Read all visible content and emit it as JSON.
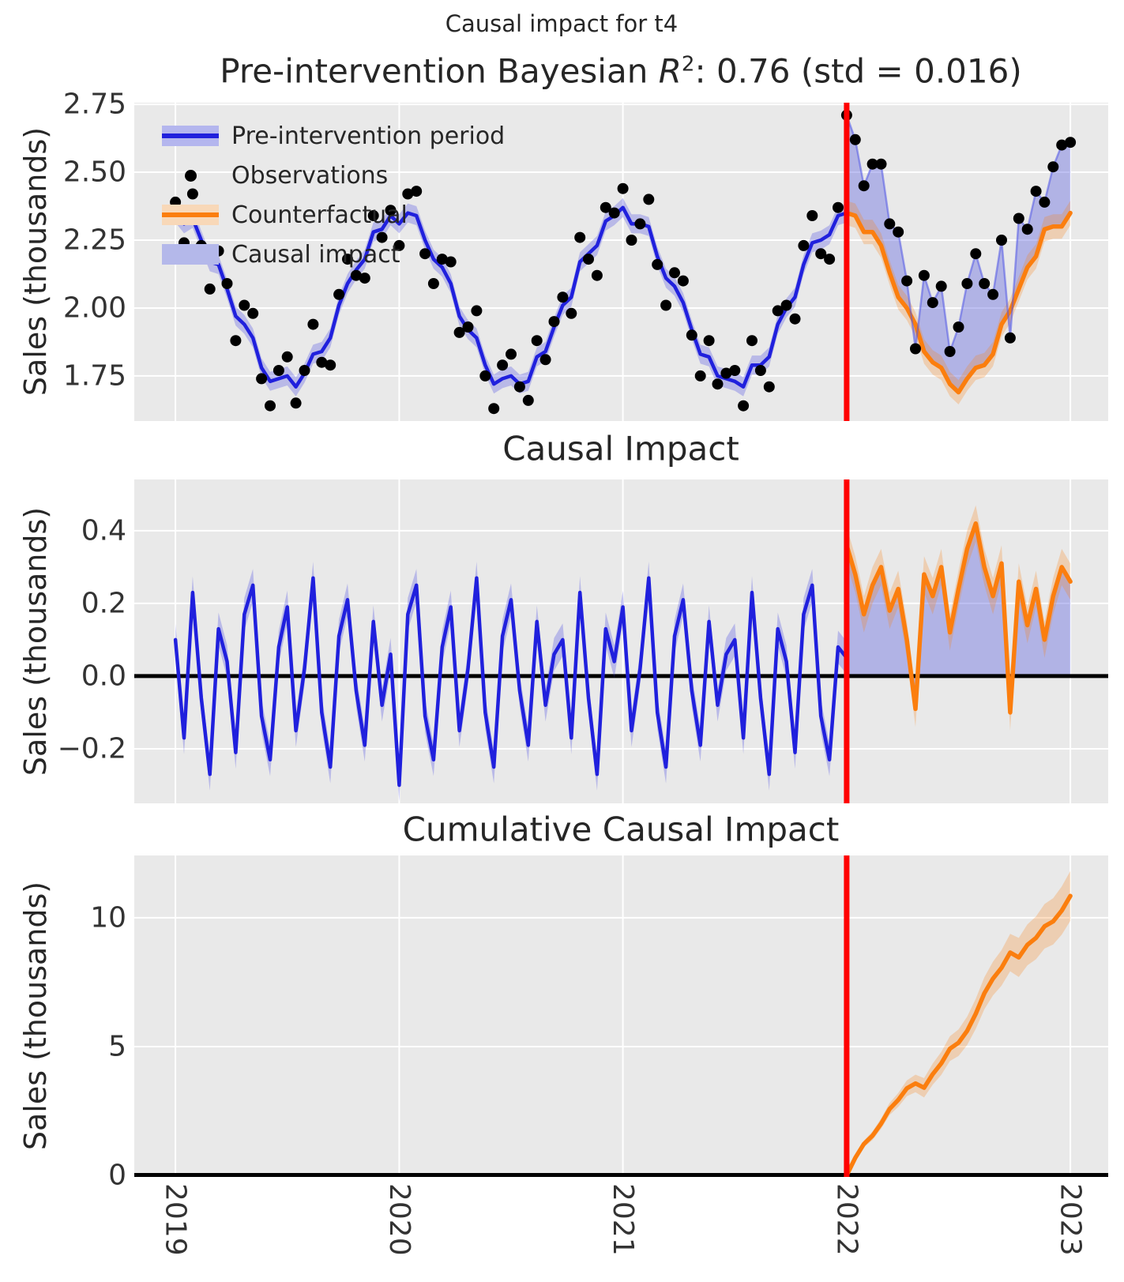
{
  "suptitle": "Causal impact for t4",
  "panels": [
    {
      "title_prefix": "Pre-intervention Bayesian ",
      "title_var": "R",
      "title_sup": "2",
      "title_suffix": ": 0.76 (std = 0.016)",
      "ylabel": "Sales (thousands)"
    },
    {
      "title": "Causal Impact",
      "ylabel": "Sales (thousands)"
    },
    {
      "title": "Cumulative Causal Impact",
      "ylabel": "Sales (thousands)"
    }
  ],
  "legend": {
    "items": [
      {
        "label": "Pre-intervention period",
        "swatch": "blue-line-with-band"
      },
      {
        "label": "Observations",
        "swatch": "black-dot"
      },
      {
        "label": "Counterfactual",
        "swatch": "orange-line-with-band"
      },
      {
        "label": "Causal impact",
        "swatch": "periwinkle-patch"
      }
    ]
  },
  "colors": {
    "blue_line": "#2020dd",
    "blue_band": "rgba(60,60,225,0.28)",
    "impact_fill": "rgba(100,105,225,0.42)",
    "obs_post_line": "rgba(80,85,230,0.55)",
    "orange_line": "#fb7e0e",
    "orange_band": "rgba(250,126,14,0.25)",
    "red_line": "#ff0000",
    "dot": "#000000",
    "zero_line": "#000000",
    "panel_bg": "#e9e9e9",
    "grid": "#ffffff",
    "legend_blue_band": "#b4b6ee",
    "legend_orange_band": "#f8d8b8",
    "legend_impact_patch": "#b4b8ea"
  },
  "chart_data": [
    {
      "type": "line",
      "title": "Pre-intervention Bayesian R^2: 0.76 (std = 0.016)",
      "ylabel": "Sales (thousands)",
      "xlim": [
        2018.816,
        2023.169
      ],
      "ylim": [
        1.584,
        2.756
      ],
      "x_start": 2019.0,
      "points_per_year": 26,
      "intervention_x": 2022.0,
      "xticks": {
        "values": [
          2019,
          2020,
          2021,
          2022,
          2023
        ],
        "labels": [
          "2019",
          "2020",
          "2021",
          "2022",
          "2023"
        ]
      },
      "yticks": {
        "values": [
          1.75,
          2.0,
          2.25,
          2.5,
          2.75
        ],
        "labels": [
          "1.75",
          "2.00",
          "2.25",
          "2.50",
          "2.75"
        ]
      },
      "pre_band_halfwidth": 0.035,
      "cf_band_halfwidth": 0.045,
      "observations": [
        2.39,
        2.24,
        2.42,
        2.23,
        2.07,
        2.21,
        2.09,
        1.88,
        2.01,
        1.98,
        1.74,
        1.64,
        1.77,
        1.82,
        1.65,
        1.77,
        1.94,
        1.8,
        1.79,
        2.05,
        2.18,
        2.12,
        2.11,
        2.34,
        2.26,
        2.36,
        2.23,
        2.42,
        2.43,
        2.2,
        2.09,
        2.18,
        2.17,
        1.91,
        1.93,
        1.99,
        1.75,
        1.63,
        1.79,
        1.83,
        1.71,
        1.66,
        1.88,
        1.81,
        1.95,
        2.04,
        1.98,
        2.26,
        2.18,
        2.12,
        2.37,
        2.35,
        2.44,
        2.25,
        2.31,
        2.4,
        2.16,
        2.01,
        2.13,
        2.1,
        1.9,
        1.75,
        1.88,
        1.72,
        1.76,
        1.77,
        1.64,
        1.88,
        1.77,
        1.71,
        1.99,
        2.01,
        1.96,
        2.23,
        2.34,
        2.2,
        2.18,
        2.37,
        2.71,
        2.62,
        2.45,
        2.53,
        2.53,
        2.31,
        2.28,
        2.1,
        1.85,
        2.12,
        2.02,
        2.08,
        1.84,
        1.93,
        2.09,
        2.2,
        2.09,
        2.05,
        2.25,
        1.89,
        2.33,
        2.29,
        2.43,
        2.39,
        2.52,
        2.6,
        2.61
      ],
      "pre_fit": [
        2.35,
        2.31,
        2.33,
        2.25,
        2.17,
        2.16,
        2.07,
        1.97,
        1.94,
        1.89,
        1.78,
        1.73,
        1.74,
        1.75,
        1.71,
        1.76,
        1.83,
        1.84,
        1.89,
        2.01,
        2.09,
        2.14,
        2.18,
        2.28,
        2.29,
        2.34,
        2.31,
        2.35,
        2.34,
        2.25,
        2.18,
        2.15,
        2.09,
        1.97,
        1.92,
        1.89,
        1.79,
        1.72,
        1.74,
        1.75,
        1.72,
        1.73,
        1.82,
        1.84,
        1.93,
        2.01,
        2.04,
        2.17,
        2.2,
        2.23,
        2.32,
        2.34,
        2.37,
        2.31,
        2.31,
        2.3,
        2.19,
        2.11,
        2.08,
        2.02,
        1.92,
        1.83,
        1.82,
        1.75,
        1.74,
        1.73,
        1.71,
        1.79,
        1.79,
        1.82,
        1.94,
        2.0,
        2.04,
        2.16,
        2.24,
        2.25,
        2.27,
        2.34,
        2.35
      ],
      "counterfactual": [
        2.35,
        2.34,
        2.28,
        2.28,
        2.23,
        2.13,
        2.04,
        2.0,
        1.94,
        1.84,
        1.8,
        1.78,
        1.72,
        1.69,
        1.74,
        1.78,
        1.79,
        1.83,
        1.94,
        1.99,
        2.07,
        2.15,
        2.19,
        2.29,
        2.3,
        2.3,
        2.35
      ],
      "legend": [
        "Pre-intervention period",
        "Observations",
        "Counterfactual",
        "Causal impact"
      ]
    },
    {
      "type": "line",
      "title": "Causal Impact",
      "ylabel": "Sales (thousands)",
      "xlim": [
        2018.816,
        2023.169
      ],
      "ylim": [
        -0.35,
        0.541
      ],
      "x_start": 2019.0,
      "points_per_year": 26,
      "intervention_x": 2022.0,
      "baseline": 0,
      "xticks": {
        "values": [
          2019,
          2020,
          2021,
          2022,
          2023
        ],
        "labels": [
          "2019",
          "2020",
          "2021",
          "2022",
          "2023"
        ]
      },
      "yticks": {
        "values": [
          -0.2,
          0.0,
          0.2,
          0.4
        ],
        "labels": [
          "−0.2",
          "0.0",
          "0.2",
          "0.4"
        ]
      },
      "band_halfwidth_pre": 0.045,
      "band_halfwidth_post": 0.05,
      "impact_pre": [
        0.1,
        -0.17,
        0.23,
        -0.06,
        -0.27,
        0.13,
        0.04,
        -0.21,
        0.17,
        0.25,
        -0.11,
        -0.23,
        0.08,
        0.19,
        -0.15,
        0.02,
        0.27,
        -0.1,
        -0.25,
        0.11,
        0.21,
        -0.04,
        -0.19,
        0.15,
        -0.08,
        0.06,
        -0.3,
        0.17,
        0.25,
        -0.11,
        -0.23,
        0.08,
        0.19,
        -0.15,
        0.02,
        0.27,
        -0.1,
        -0.25,
        0.11,
        0.21,
        -0.04,
        -0.19,
        0.15,
        -0.08,
        0.06,
        0.1,
        -0.17,
        0.23,
        -0.06,
        -0.27,
        0.13,
        0.04,
        0.19,
        -0.15,
        0.02,
        0.27,
        -0.1,
        -0.25,
        0.11,
        0.21,
        -0.04,
        -0.19,
        0.15,
        -0.08,
        0.06,
        0.1,
        -0.17,
        0.23,
        -0.06,
        -0.27,
        0.13,
        0.04,
        -0.21,
        0.17,
        0.25,
        -0.11,
        -0.23,
        0.08,
        0.05
      ],
      "impact_post": [
        0.36,
        0.28,
        0.17,
        0.25,
        0.3,
        0.18,
        0.24,
        0.1,
        -0.09,
        0.28,
        0.22,
        0.3,
        0.12,
        0.24,
        0.35,
        0.42,
        0.3,
        0.22,
        0.31,
        -0.1,
        0.26,
        0.14,
        0.24,
        0.1,
        0.22,
        0.3,
        0.26
      ]
    },
    {
      "type": "line",
      "title": "Cumulative Causal Impact",
      "ylabel": "Sales (thousands)",
      "xlim": [
        2018.816,
        2023.169
      ],
      "ylim": [
        -0.061,
        12.42
      ],
      "x_start": 2022.0,
      "points_per_year": 26,
      "intervention_x": 2022.0,
      "baseline": 0,
      "xticks": {
        "values": [
          2019,
          2020,
          2021,
          2022,
          2023
        ],
        "labels": [
          "2019",
          "2020",
          "2021",
          "2022",
          "2023"
        ]
      },
      "yticks": {
        "values": [
          0,
          5,
          10
        ],
        "labels": [
          "0",
          "5",
          "10"
        ]
      },
      "band_base": 0.06,
      "band_growth": 0.035,
      "cumulative": [
        0.0,
        0.68,
        1.22,
        1.54,
        2.01,
        2.58,
        2.93,
        3.38,
        3.57,
        3.4,
        3.93,
        4.35,
        4.92,
        5.15,
        5.61,
        6.27,
        7.07,
        7.64,
        8.06,
        8.65,
        8.46,
        8.95,
        9.22,
        9.67,
        9.86,
        10.28,
        10.85
      ]
    }
  ]
}
